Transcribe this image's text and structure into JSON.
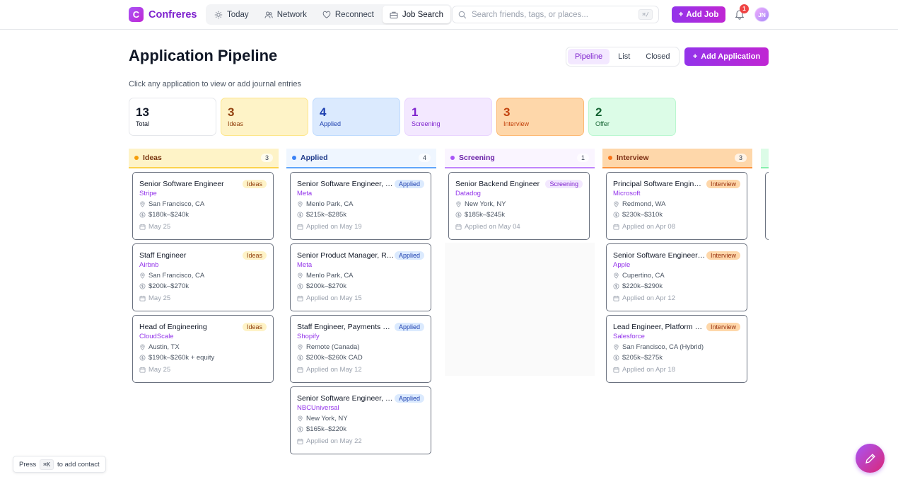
{
  "app": {
    "logo_letter": "C",
    "name": "Confreres"
  },
  "nav": [
    {
      "label": "Today",
      "icon": "sun-icon"
    },
    {
      "label": "Network",
      "icon": "users-icon"
    },
    {
      "label": "Reconnect",
      "icon": "heart-icon"
    },
    {
      "label": "Job Search",
      "icon": "briefcase-icon",
      "active": true
    }
  ],
  "search": {
    "placeholder": "Search friends, tags, or places...",
    "shortcut": "⌘/"
  },
  "header": {
    "add_job": "Add Job",
    "notification_count": "1",
    "avatar_initials": "JN"
  },
  "page": {
    "title": "Application Pipeline",
    "subtitle": "Click any application to view or add journal entries",
    "views": [
      "Pipeline",
      "List",
      "Closed"
    ],
    "active_view": "Pipeline",
    "add_application": "Add Application"
  },
  "stats": [
    {
      "value": "13",
      "label": "Total"
    },
    {
      "value": "3",
      "label": "Ideas"
    },
    {
      "value": "4",
      "label": "Applied"
    },
    {
      "value": "1",
      "label": "Screening"
    },
    {
      "value": "3",
      "label": "Interview"
    },
    {
      "value": "2",
      "label": "Offer"
    }
  ],
  "columns": [
    {
      "name": "Ideas",
      "count": "3",
      "cards": [
        {
          "title": "Senior Software Engineer",
          "company": "Stripe",
          "location": "San Francisco, CA",
          "salary": "$180k–$240k",
          "date": "May 25",
          "badge": "Ideas"
        },
        {
          "title": "Staff Engineer",
          "company": "Airbnb",
          "location": "San Francisco, CA",
          "salary": "$200k–$270k",
          "date": "May 25",
          "badge": "Ideas"
        },
        {
          "title": "Head of Engineering",
          "company": "CloudScale",
          "location": "Austin, TX",
          "salary": "$190k–$260k + equity",
          "date": "May 25",
          "badge": "Ideas"
        }
      ]
    },
    {
      "name": "Applied",
      "count": "4",
      "cards": [
        {
          "title": "Senior Software Engineer, …",
          "company": "Meta",
          "location": "Menlo Park, CA",
          "salary": "$215k–$285k",
          "date": "Applied on May 19",
          "badge": "Applied"
        },
        {
          "title": "Senior Product Manager, R…",
          "company": "Meta",
          "location": "Menlo Park, CA",
          "salary": "$200k–$270k",
          "date": "Applied on May 15",
          "badge": "Applied"
        },
        {
          "title": "Staff Engineer, Payments …",
          "company": "Shopify",
          "location": "Remote (Canada)",
          "salary": "$200k–$260k CAD",
          "date": "Applied on May 12",
          "badge": "Applied"
        },
        {
          "title": "Senior Software Engineer, …",
          "company": "NBCUniversal",
          "location": "New York, NY",
          "salary": "$165k–$220k",
          "date": "Applied on May 22",
          "badge": "Applied"
        }
      ]
    },
    {
      "name": "Screening",
      "count": "1",
      "cards": [
        {
          "title": "Senior Backend Engineer",
          "company": "Datadog",
          "location": "New York, NY",
          "salary": "$185k–$245k",
          "date": "Applied on May 04",
          "badge": "Screening"
        }
      ]
    },
    {
      "name": "Interview",
      "count": "3",
      "cards": [
        {
          "title": "Principal Software Engin…",
          "company": "Microsoft",
          "location": "Redmond, WA",
          "salary": "$230k–$310k",
          "date": "Applied on Apr 08",
          "badge": "Interview"
        },
        {
          "title": "Senior Software Engineer…",
          "company": "Apple",
          "location": "Cupertino, CA",
          "salary": "$220k–$290k",
          "date": "Applied on Apr 12",
          "badge": "Interview"
        },
        {
          "title": "Lead Engineer, Platform …",
          "company": "Salesforce",
          "location": "San Francisco, CA (Hybrid)",
          "salary": "$205k–$275k",
          "date": "Applied on Apr 18",
          "badge": "Interview"
        }
      ]
    }
  ],
  "hint": {
    "prefix": "Press",
    "key": "⌘K",
    "suffix": "to add contact"
  },
  "colors": {
    "accent": "#9333ea",
    "ideas": "#fef3c7",
    "applied": "#dbeafe",
    "screening": "#f3e8ff",
    "interview": "#fed7aa",
    "offer": "#dcfce7"
  }
}
